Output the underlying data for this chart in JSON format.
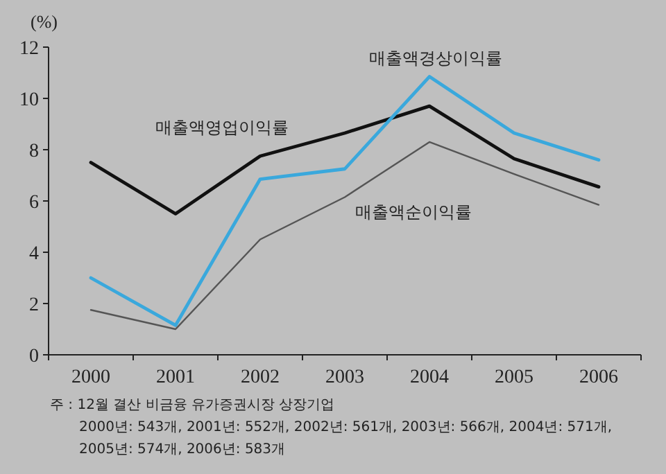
{
  "chart_data": {
    "type": "line",
    "ylabel": "(%)",
    "categories": [
      "2000",
      "2001",
      "2002",
      "2003",
      "2004",
      "2005",
      "2006"
    ],
    "series": [
      {
        "name": "매출액영업이익률",
        "color": "#111111",
        "values": [
          7.5,
          5.5,
          7.75,
          8.65,
          9.7,
          7.65,
          6.55
        ]
      },
      {
        "name": "매출액경상이익률",
        "color": "#3aa8dc",
        "values": [
          3.0,
          1.15,
          6.85,
          7.25,
          10.85,
          8.65,
          7.6
        ]
      },
      {
        "name": "매출액순이익률",
        "color": "#555555",
        "values": [
          1.75,
          1.0,
          4.5,
          6.15,
          8.3,
          7.05,
          5.85
        ]
      }
    ],
    "ylim": [
      0,
      12
    ],
    "yticks": [
      0,
      2,
      4,
      6,
      8,
      10,
      12
    ],
    "grid": false,
    "legend": false,
    "marker": "none",
    "line_style": "solid",
    "annotations": [
      "주 : 12월 결산 비금융 유가증권시장 상장기업",
      "2000년: 543개, 2001년: 552개, 2002년: 561개, 2003년: 566개, 2004년: 571개,",
      "2005년: 574개, 2006년: 583개"
    ]
  }
}
